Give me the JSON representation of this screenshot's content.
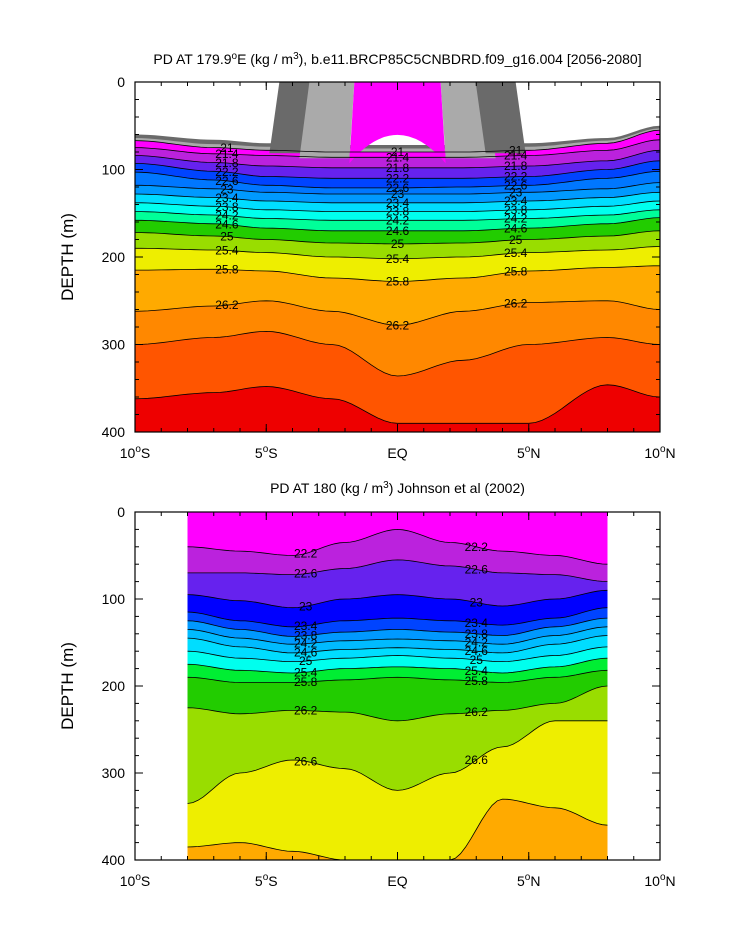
{
  "chart_data": [
    {
      "type": "contour",
      "title": "PD AT 179.9°E (kg / m³), b.e11.BRCP85C5CNBDRD.f09_g16.004 [2056-2080]",
      "title_parts": [
        "PD AT 179.9",
        "o",
        "E (kg / m",
        "3",
        "), b.e11.BRCP85C5CNBDRD.f09_g16.004 [2056-2080]"
      ],
      "ylabel": "DEPTH (m)",
      "xlabel": "",
      "xlim": [
        -10,
        10
      ],
      "ylim": [
        400,
        0
      ],
      "x_ticks": [
        {
          "value": -10,
          "num": "10",
          "hemi": "S"
        },
        {
          "value": -5,
          "num": "5",
          "hemi": "S"
        },
        {
          "value": 0,
          "num": "EQ",
          "hemi": ""
        },
        {
          "value": 5,
          "num": "5",
          "hemi": "N"
        },
        {
          "value": 10,
          "num": "10",
          "hemi": "N"
        }
      ],
      "y_ticks": [
        0,
        100,
        200,
        300,
        400
      ],
      "x_data": [
        -10,
        -7,
        -5,
        -2.5,
        0,
        2.5,
        5,
        8,
        10
      ],
      "contours": [
        {
          "level": 21.0,
          "depth": [
            67,
            75,
            78,
            80,
            80,
            80,
            78,
            70,
            55
          ]
        },
        {
          "level": 21.4,
          "depth": [
            75,
            82,
            84,
            86,
            86,
            86,
            84,
            78,
            66
          ]
        },
        {
          "level": 21.8,
          "depth": [
            84,
            92,
            96,
            98,
            98,
            98,
            96,
            90,
            78
          ]
        },
        {
          "level": 22.2,
          "depth": [
            93,
            102,
            108,
            110,
            110,
            110,
            108,
            100,
            90
          ]
        },
        {
          "level": 22.6,
          "depth": [
            103,
            112,
            118,
            121,
            121,
            120,
            118,
            110,
            102
          ]
        },
        {
          "level": 23.0,
          "depth": [
            118,
            122,
            126,
            128,
            128,
            128,
            126,
            122,
            115
          ]
        },
        {
          "level": 23.4,
          "depth": [
            128,
            132,
            136,
            138,
            138,
            138,
            136,
            132,
            126
          ]
        },
        {
          "level": 23.8,
          "depth": [
            138,
            142,
            146,
            148,
            148,
            148,
            146,
            142,
            136
          ]
        },
        {
          "level": 24.2,
          "depth": [
            148,
            152,
            156,
            158,
            158,
            158,
            156,
            152,
            146
          ]
        },
        {
          "level": 24.6,
          "depth": [
            158,
            162,
            167,
            170,
            170,
            170,
            167,
            162,
            155
          ]
        },
        {
          "level": 25.0,
          "depth": [
            172,
            176,
            180,
            184,
            185,
            184,
            180,
            176,
            170
          ]
        },
        {
          "level": 25.4,
          "depth": [
            190,
            192,
            195,
            200,
            202,
            200,
            195,
            192,
            188
          ]
        },
        {
          "level": 25.8,
          "depth": [
            215,
            214,
            216,
            224,
            228,
            224,
            216,
            212,
            210
          ]
        },
        {
          "level": 26.2,
          "depth": [
            262,
            256,
            250,
            262,
            278,
            262,
            252,
            250,
            260
          ]
        },
        {
          "level": 26.6,
          "depth": [
            300,
            292,
            285,
            300,
            336,
            318,
            300,
            292,
            300
          ]
        },
        {
          "level": 27.0,
          "depth": [
            362,
            355,
            348,
            362,
            390,
            390,
            390,
            346,
            360
          ]
        }
      ],
      "top_masked_region": {
        "x_from": -4.5,
        "x_to": 4.5,
        "depth_to": 70
      },
      "labels": [
        "21",
        "21.4",
        "21.8",
        "22.2",
        "22.6",
        "23",
        "23.4",
        "23.8",
        "24.2",
        "24.6",
        "25",
        "25.4",
        "25.8",
        "26.2"
      ]
    },
    {
      "type": "contour",
      "title": "PD AT 180 (kg / m³) Johnson et al (2002)",
      "title_parts": [
        "PD AT 180 (kg / m",
        "3",
        ") Johnson et al (2002)"
      ],
      "ylabel": "DEPTH (m)",
      "xlabel": "",
      "xlim": [
        -10,
        10
      ],
      "ylim": [
        400,
        0
      ],
      "data_xlim": [
        -8,
        8
      ],
      "x_ticks": [
        {
          "value": -10,
          "num": "10",
          "hemi": "S"
        },
        {
          "value": -5,
          "num": "5",
          "hemi": "S"
        },
        {
          "value": 0,
          "num": "EQ",
          "hemi": ""
        },
        {
          "value": 5,
          "num": "5",
          "hemi": "N"
        },
        {
          "value": 10,
          "num": "10",
          "hemi": "N"
        }
      ],
      "y_ticks": [
        0,
        100,
        200,
        300,
        400
      ],
      "x_data": [
        -8,
        -6,
        -4,
        -2,
        0,
        2,
        4,
        6,
        8
      ],
      "contours": [
        {
          "level": 22.2,
          "depth": [
            40,
            45,
            50,
            35,
            20,
            35,
            45,
            50,
            60
          ]
        },
        {
          "level": 22.6,
          "depth": [
            70,
            70,
            72,
            65,
            55,
            62,
            70,
            72,
            80
          ]
        },
        {
          "level": 23.0,
          "depth": [
            95,
            102,
            110,
            100,
            95,
            100,
            108,
            100,
            90
          ]
        },
        {
          "level": 23.4,
          "depth": [
            115,
            125,
            132,
            125,
            122,
            125,
            130,
            122,
            110
          ]
        },
        {
          "level": 23.8,
          "depth": [
            125,
            135,
            143,
            138,
            135,
            138,
            142,
            132,
            122
          ]
        },
        {
          "level": 24.2,
          "depth": [
            135,
            145,
            152,
            148,
            146,
            148,
            152,
            142,
            132
          ]
        },
        {
          "level": 24.6,
          "depth": [
            145,
            155,
            162,
            158,
            156,
            158,
            162,
            152,
            142
          ]
        },
        {
          "level": 25.0,
          "depth": [
            160,
            168,
            172,
            168,
            165,
            168,
            172,
            165,
            155
          ]
        },
        {
          "level": 25.4,
          "depth": [
            175,
            182,
            185,
            180,
            178,
            180,
            185,
            178,
            168
          ]
        },
        {
          "level": 25.8,
          "depth": [
            190,
            196,
            196,
            193,
            190,
            193,
            196,
            190,
            182
          ]
        },
        {
          "level": 26.2,
          "depth": [
            225,
            232,
            228,
            230,
            240,
            232,
            228,
            220,
            200
          ]
        },
        {
          "level": 26.6,
          "depth": [
            335,
            300,
            285,
            295,
            320,
            300,
            270,
            240,
            240
          ]
        },
        {
          "level": 27.0,
          "depth": [
            385,
            380,
            390,
            400,
            400,
            400,
            330,
            340,
            360
          ]
        }
      ],
      "labels": [
        "22.2",
        "22.6",
        "23",
        "23.4",
        "23.8",
        "24.2",
        "24.6",
        "25",
        "25.4",
        "25.8",
        "26.2",
        "26.6"
      ]
    }
  ],
  "colors": {
    "bands": [
      "#6a6a6a",
      "#aaaaaa",
      "#ff00ff",
      "#bb22dd",
      "#6622ee",
      "#0000ff",
      "#0044ff",
      "#0077ff",
      "#0099ff",
      "#00bbff",
      "#00ddff",
      "#00ffee",
      "#00ff99",
      "#00ee33",
      "#22cc00",
      "#99dd00",
      "#eeee00",
      "#ffcc00",
      "#ffaa00",
      "#ff8800",
      "#ff5500",
      "#ff2200",
      "#ee0000",
      "#cc0000"
    ],
    "contour_line": "#000000"
  }
}
